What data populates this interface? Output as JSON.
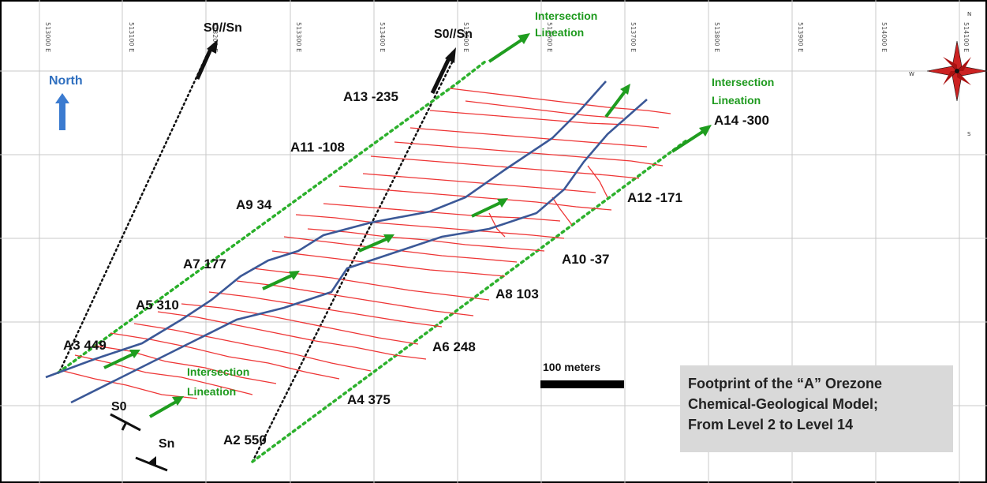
{
  "grid_labels": [
    "513000 E",
    "513100 E",
    "513200 E",
    "513300 E",
    "513400 E",
    "513500 E",
    "513600 E",
    "513700 E",
    "513800 E",
    "513900 E",
    "514000 E",
    "514100 E"
  ],
  "north_arrow_label": "North",
  "axis_labels": {
    "s0_sn_left": "S0//Sn",
    "s0_sn_right": "S0//Sn",
    "s0": "S0",
    "sn": "Sn"
  },
  "intersection_labels": [
    {
      "line1": "Intersection",
      "line2": "Lineation"
    },
    {
      "line1": "Intersection",
      "line2": "Lineation"
    },
    {
      "line1": "Intersection",
      "line2": "Lineation"
    }
  ],
  "levels": [
    {
      "label": "A2 550"
    },
    {
      "label": "A3 449"
    },
    {
      "label": "A4 375"
    },
    {
      "label": "A5 310"
    },
    {
      "label": "A6 248"
    },
    {
      "label": "A7 177"
    },
    {
      "label": "A8 103"
    },
    {
      "label": "A9 34"
    },
    {
      "label": "A10 -37"
    },
    {
      "label": "A11 -108"
    },
    {
      "label": "A12 -171"
    },
    {
      "label": "A13 -235"
    },
    {
      "label": "A14 -300"
    }
  ],
  "scale_bar_label": "100 meters",
  "caption": {
    "line1": "Footprint of the “A” Orezone",
    "line2": "Chemical-Geological Model;",
    "line3": "From Level 2 to Level 14"
  },
  "compass": {
    "n": "N",
    "w": "W",
    "s": "S"
  },
  "colors": {
    "veins": "#ee3535",
    "contacts": "#3b5897",
    "lineation": "#2bb02b",
    "north_arrow": "#3b7bd0"
  }
}
